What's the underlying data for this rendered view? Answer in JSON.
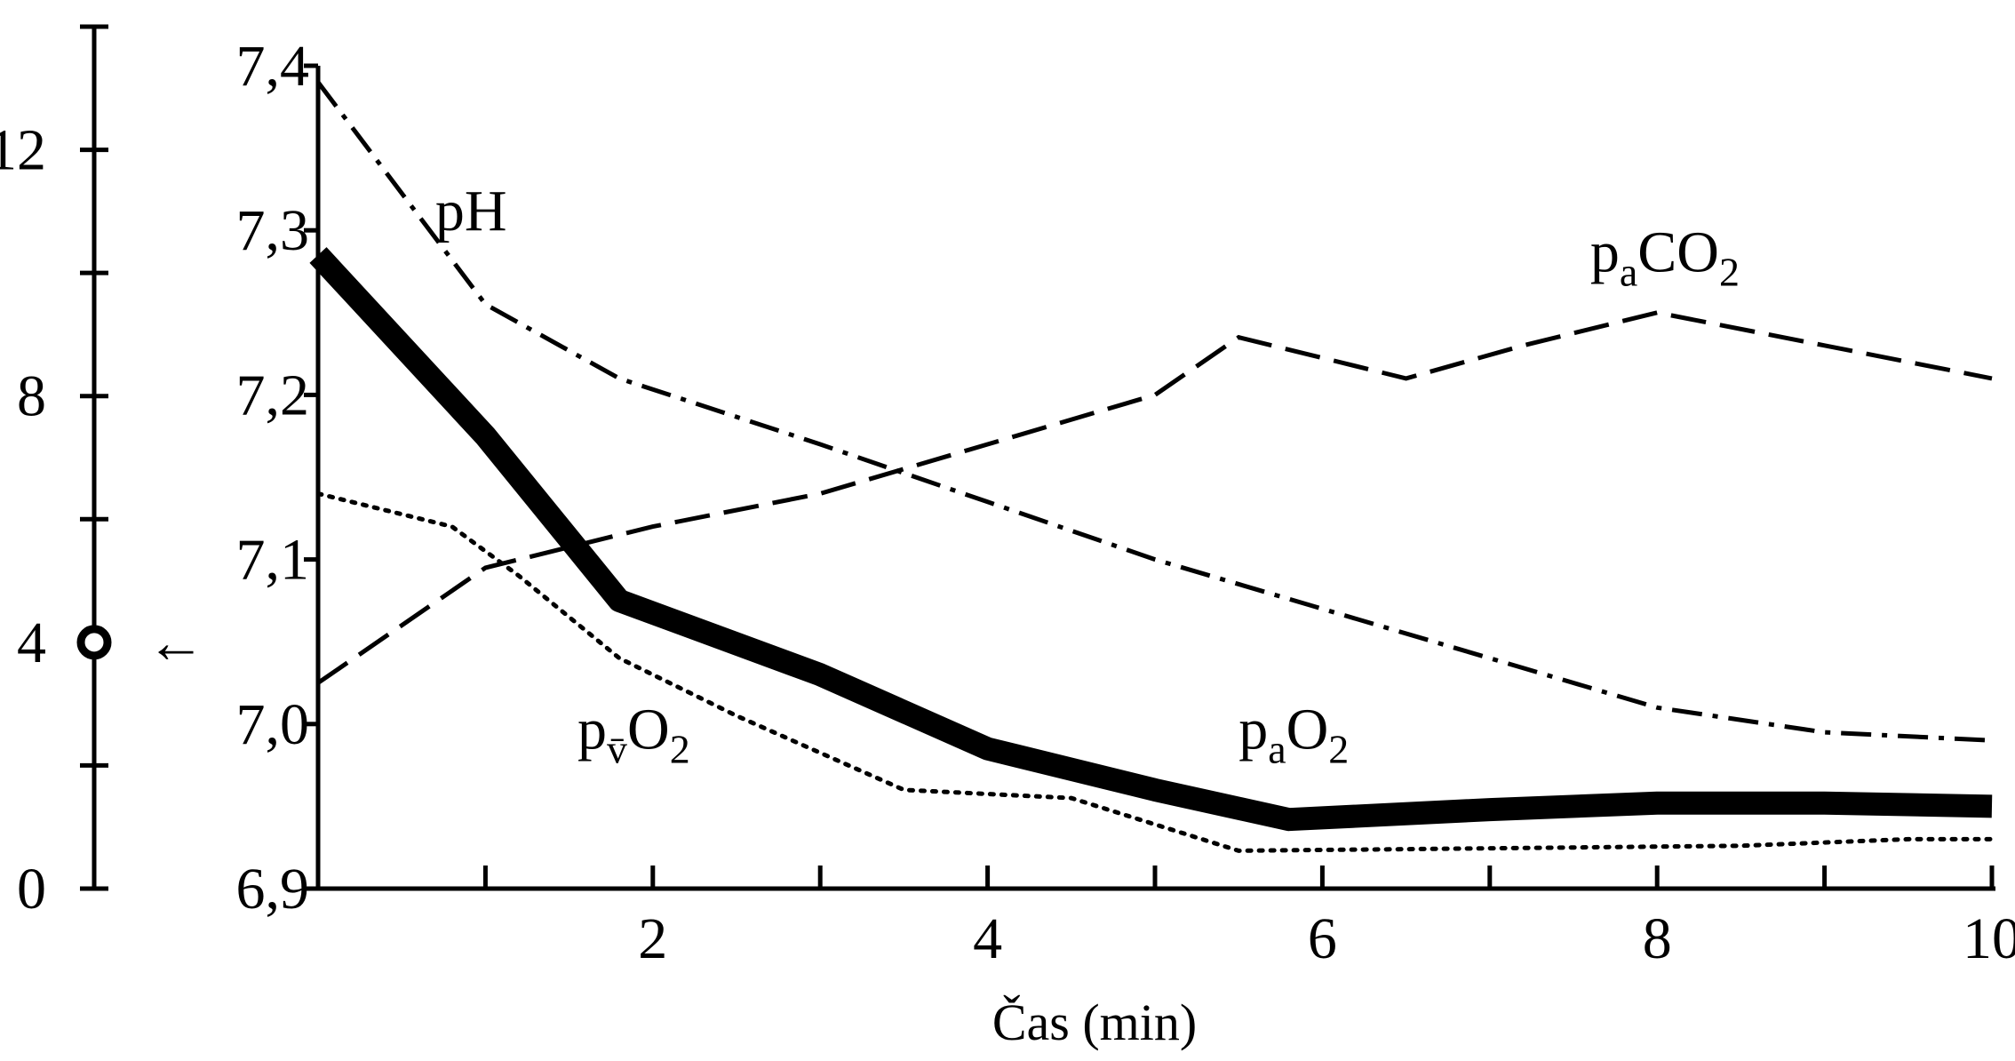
{
  "chart_data": {
    "type": "line",
    "title": "",
    "xlabel": "Čas (min)",
    "ylabel": "",
    "xlim": [
      0,
      10
    ],
    "ylim": [
      6.9,
      7.4
    ],
    "grid": false,
    "x_ticks": [
      {
        "value": 1,
        "label": ""
      },
      {
        "value": 2,
        "label": "2"
      },
      {
        "value": 3,
        "label": ""
      },
      {
        "value": 4,
        "label": "4"
      },
      {
        "value": 5,
        "label": ""
      },
      {
        "value": 6,
        "label": "6"
      },
      {
        "value": 7,
        "label": ""
      },
      {
        "value": 8,
        "label": "8"
      },
      {
        "value": 9,
        "label": ""
      },
      {
        "value": 10,
        "label": "10"
      }
    ],
    "y_ticks": [
      {
        "value": 6.9,
        "label": "6,9"
      },
      {
        "value": 7.0,
        "label": "7,0"
      },
      {
        "value": 7.1,
        "label": "7,1"
      },
      {
        "value": 7.2,
        "label": "7,2"
      },
      {
        "value": 7.3,
        "label": "7,3"
      },
      {
        "value": 7.4,
        "label": "7,4"
      }
    ],
    "secondary_axis": {
      "range": [
        0,
        14
      ],
      "ticks": [
        {
          "value": 0,
          "label": "0"
        },
        {
          "value": 2,
          "label": ""
        },
        {
          "value": 4,
          "label": "4"
        },
        {
          "value": 6,
          "label": ""
        },
        {
          "value": 8,
          "label": "8"
        },
        {
          "value": 10,
          "label": ""
        },
        {
          "value": 12,
          "label": "12"
        }
      ],
      "marker_value": 4,
      "marker_arrow": "←"
    },
    "series": [
      {
        "name": "pH",
        "style": "dash-dot",
        "label_parts": [
          {
            "text": "pH"
          }
        ],
        "label_at": [
          0.7,
          7.3
        ],
        "x": [
          0,
          1.0,
          1.8,
          3.0,
          4.0,
          5.0,
          6.0,
          7.0,
          8.0,
          9.0,
          10.0
        ],
        "y": [
          7.39,
          7.255,
          7.21,
          7.17,
          7.135,
          7.1,
          7.07,
          7.04,
          7.01,
          6.995,
          6.99
        ]
      },
      {
        "name": "paCO2",
        "style": "dashed",
        "label_parts": [
          {
            "text": "p"
          },
          {
            "text": "a",
            "sub": true
          },
          {
            "text": "CO"
          },
          {
            "text": "2",
            "sub": true
          }
        ],
        "label_at": [
          7.6,
          7.275
        ],
        "x": [
          0,
          1.0,
          2.0,
          3.0,
          4.0,
          5.0,
          5.5,
          6.5,
          7.2,
          8.0,
          9.0,
          10.0
        ],
        "y": [
          7.025,
          7.095,
          7.12,
          7.14,
          7.17,
          7.2,
          7.235,
          7.21,
          7.23,
          7.25,
          7.23,
          7.21
        ]
      },
      {
        "name": "paO2",
        "style": "thick",
        "label_parts": [
          {
            "text": "p"
          },
          {
            "text": "a",
            "sub": true
          },
          {
            "text": "O"
          },
          {
            "text": "2",
            "sub": true
          }
        ],
        "label_at": [
          5.5,
          6.985
        ],
        "x": [
          0,
          1.0,
          1.8,
          3.0,
          4.0,
          5.0,
          5.8,
          7.0,
          8.0,
          9.0,
          10.0
        ],
        "y": [
          7.285,
          7.175,
          7.075,
          7.03,
          6.985,
          6.96,
          6.942,
          6.948,
          6.952,
          6.952,
          6.95
        ]
      },
      {
        "name": "pvO2",
        "style": "dotted",
        "label_parts": [
          {
            "text": "p"
          },
          {
            "text": "v̄",
            "sub": true
          },
          {
            "text": "O"
          },
          {
            "text": "2",
            "sub": true
          }
        ],
        "label_at": [
          1.55,
          6.985
        ],
        "x": [
          0,
          0.8,
          1.2,
          1.8,
          2.5,
          3.5,
          4.5,
          5.5,
          6.5,
          7.5,
          8.5,
          9.5,
          10.0
        ],
        "y": [
          7.14,
          7.12,
          7.09,
          7.04,
          7.005,
          6.96,
          6.955,
          6.923,
          6.924,
          6.925,
          6.926,
          6.93,
          6.93
        ]
      }
    ]
  }
}
